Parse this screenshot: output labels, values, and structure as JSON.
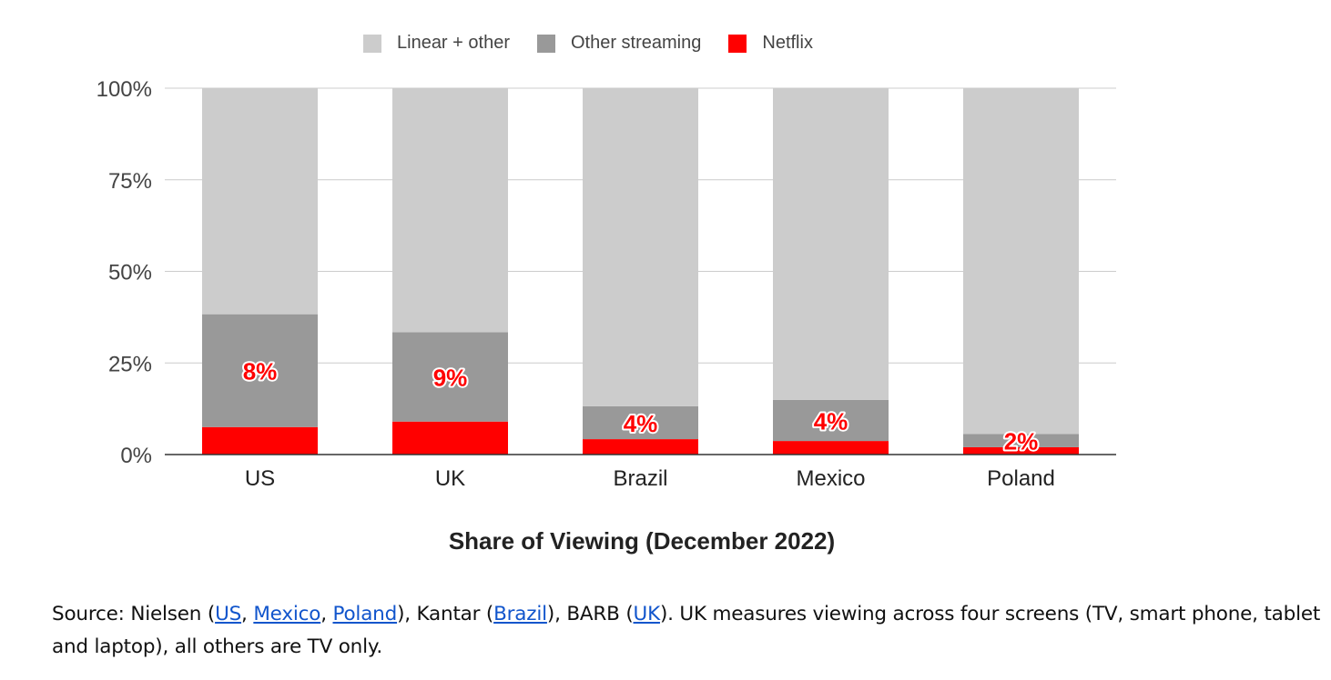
{
  "chart_data": {
    "type": "bar",
    "stacked": true,
    "categories": [
      "US",
      "UK",
      "Brazil",
      "Mexico",
      "Poland"
    ],
    "series": [
      {
        "name": "Netflix",
        "color": "#ff0000",
        "values": [
          7.5,
          9.0,
          4.2,
          3.7,
          2.0
        ]
      },
      {
        "name": "Other streaming",
        "color": "#999999",
        "values": [
          30.8,
          24.4,
          9.0,
          11.2,
          3.6
        ]
      },
      {
        "name": "Linear + other",
        "color": "#cccccc",
        "values": [
          61.7,
          66.6,
          86.8,
          85.1,
          94.4
        ]
      }
    ],
    "data_labels": [
      "8%",
      "9%",
      "4%",
      "4%",
      "2%"
    ],
    "legend_order": [
      "Linear + other",
      "Other streaming",
      "Netflix"
    ],
    "legend_position": "top",
    "ylim": [
      0,
      100
    ],
    "yticks": [
      "0%",
      "25%",
      "50%",
      "75%",
      "100%"
    ],
    "grid": true,
    "xlabel": "Share of Viewing (December 2022)",
    "ylabel": ""
  },
  "source": {
    "prefix": "Source: Nielsen (",
    "link_us": "US",
    "sep1": ", ",
    "link_mexico": "Mexico",
    "sep2": ", ",
    "link_poland": "Poland",
    "mid1": "), Kantar (",
    "link_brazil": "Brazil",
    "mid2": "), BARB (",
    "link_uk": "UK",
    "suffix": "). UK measures viewing across four screens (TV, smart phone, tablet and laptop), all others are TV only."
  }
}
